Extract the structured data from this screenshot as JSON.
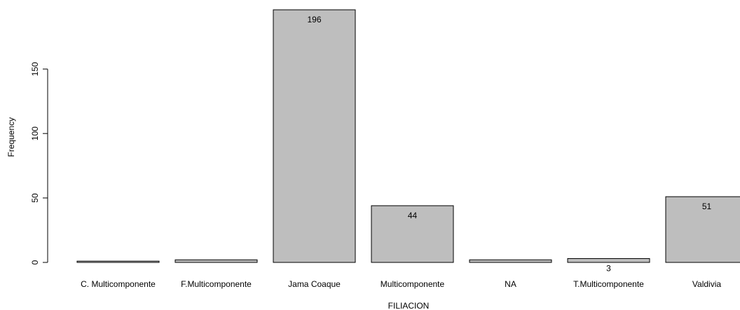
{
  "chart_data": {
    "type": "bar",
    "categories": [
      "C. Multicomponente",
      "F.Multicomponente",
      "Jama Coaque",
      "Multicomponente",
      "NA",
      "T.Multicomponente",
      "Valdivia"
    ],
    "values": [
      1,
      2,
      196,
      44,
      2,
      3,
      51
    ],
    "value_labels": [
      "",
      "",
      "196",
      "44",
      "",
      "3",
      "51"
    ],
    "title": "",
    "xlabel": "FILIACION",
    "ylabel": "Frequency",
    "ylim": [
      0,
      196
    ],
    "yticks": [
      0,
      50,
      100,
      150
    ],
    "grid": false,
    "colors": {
      "bar_fill": "#bebebe",
      "bar_stroke": "#000000"
    }
  }
}
